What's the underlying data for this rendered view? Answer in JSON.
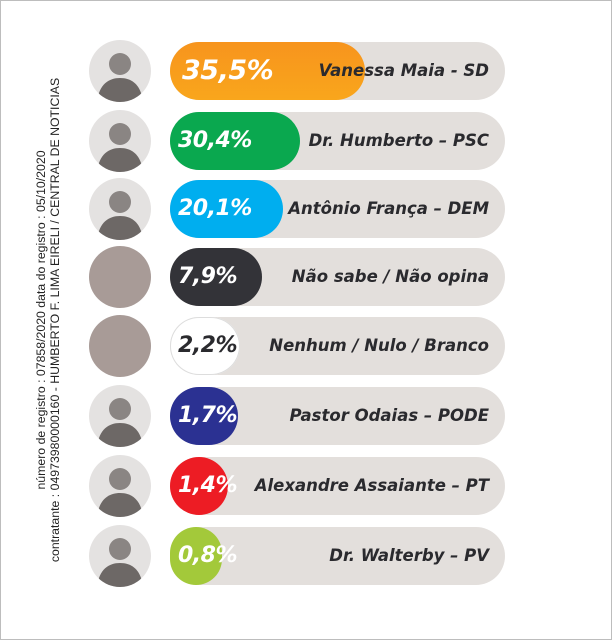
{
  "caption": {
    "line1": "número de registro : 07858/2020 data do registro : 05/10/2020",
    "line2": "contratante : 04973980000160 - HUMBERTO F. LIMA EIRELI / CENTRAL DE NOTICIAS"
  },
  "chart_data": {
    "type": "bar",
    "orientation": "horizontal",
    "unit": "%",
    "categories": [
      "Vanessa Maia - SD",
      "Dr. Humberto – PSC",
      "Antônio França – DEM",
      "Não sabe / Não opina",
      "Nenhum / Nulo / Branco",
      "Pastor Odaias – PODE",
      "Alexandre Assaiante – PT",
      "Dr. Walterby – PV"
    ],
    "values": [
      35.5,
      30.4,
      20.1,
      7.9,
      2.2,
      1.7,
      1.4,
      0.8
    ],
    "labels": [
      "35,5%",
      "30,4%",
      "20,1%",
      "7,9%",
      "2,2%",
      "1,7%",
      "1,4%",
      "0,8%"
    ],
    "colors": [
      "#f7941d",
      "#0aa84f",
      "#00aeef",
      "#333338",
      "#ffffff",
      "#2b3192",
      "#ed1c24",
      "#a3c93a"
    ],
    "track_color": "#e3dfdc",
    "photo": [
      true,
      true,
      true,
      false,
      false,
      true,
      true,
      true
    ]
  }
}
